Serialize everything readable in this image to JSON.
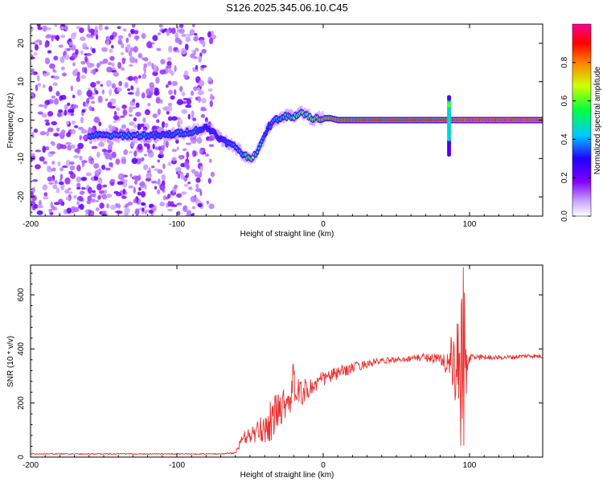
{
  "title": "S126.2025.345.06.10.C45",
  "chart_data": [
    {
      "type": "heatmap",
      "xlabel": "Height of straight line (km)",
      "ylabel": "Frequency (Hz)",
      "xlim": [
        -200,
        150
      ],
      "ylim": [
        -25,
        25
      ],
      "xticks": [
        -200,
        -100,
        0,
        100
      ],
      "xtick_labels": [
        "-200",
        "-100",
        "0",
        "100"
      ],
      "yticks": [
        -20,
        -10,
        0,
        10,
        20
      ],
      "ytick_labels": [
        "-20",
        "-10",
        "0",
        "10",
        "20"
      ],
      "noise_region_x": [
        -200,
        -75
      ],
      "ridge": {
        "x": [
          -150,
          -130,
          -110,
          -100,
          -90,
          -80,
          -75,
          -70,
          -65,
          -60,
          -57,
          -55,
          -52,
          -50,
          -47,
          -45,
          -42,
          -40,
          -38,
          -35,
          -33,
          -30,
          -25,
          -20,
          -15,
          -12,
          -10,
          -7,
          -5,
          0,
          5,
          10,
          20,
          30,
          40,
          50,
          60,
          70,
          80,
          85,
          87,
          88,
          90,
          95,
          100,
          120,
          150
        ],
        "freq": [
          -4,
          -4,
          -4,
          -3.5,
          -3,
          -2,
          -3,
          -5,
          -6,
          -7,
          -8,
          -9,
          -9.5,
          -10,
          -9,
          -8,
          -6,
          -4,
          -2,
          -1,
          0,
          0.5,
          1,
          1,
          2,
          1.5,
          1,
          0,
          0.5,
          0.5,
          0.5,
          0,
          0,
          0,
          0,
          0,
          0,
          0,
          0,
          0,
          0,
          0,
          0,
          0,
          0,
          0,
          0
        ],
        "amplitude": [
          0.4,
          0.45,
          0.35,
          0.4,
          0.4,
          0.3,
          0.25,
          0.3,
          0.35,
          0.4,
          0.45,
          0.5,
          0.6,
          0.75,
          0.6,
          0.5,
          0.4,
          0.35,
          0.3,
          0.4,
          0.45,
          0.5,
          0.55,
          0.6,
          0.65,
          0.6,
          0.6,
          0.7,
          0.75,
          0.75,
          0.8,
          0.85,
          0.85,
          0.9,
          0.9,
          0.9,
          0.9,
          0.9,
          0.9,
          0.9,
          0.85,
          0.9,
          0.95,
          0.95,
          1.0,
          1.0,
          1.0
        ]
      },
      "spike_feature": {
        "x": 86,
        "freq_range": [
          -9,
          6
        ]
      },
      "colorbar": {
        "label": "Normalized spectral amplitude",
        "range": [
          0,
          1
        ],
        "ticks": [
          0.0,
          0.2,
          0.4,
          0.6,
          0.8
        ],
        "tick_labels": [
          "0.0",
          "0.2",
          "0.4",
          "0.6",
          "0.8"
        ],
        "colormap": [
          "#ffffff",
          "#8800ff",
          "#2000ff",
          "#00c0ff",
          "#00ff40",
          "#ffff00",
          "#ff4000",
          "#ff00a0"
        ]
      }
    },
    {
      "type": "line",
      "xlabel": "Height of straight line (km)",
      "ylabel": "SNR (10 * v/v)",
      "xlim": [
        -200,
        150
      ],
      "ylim": [
        0,
        710
      ],
      "xticks": [
        -200,
        -100,
        0,
        100
      ],
      "xtick_labels": [
        "-200",
        "-100",
        "0",
        "100"
      ],
      "yticks": [
        0,
        200,
        400,
        600
      ],
      "ytick_labels": [
        "0",
        "200",
        "400",
        "600"
      ],
      "color": "#e83030",
      "envelope": {
        "x": [
          -200,
          -150,
          -100,
          -70,
          -60,
          -55,
          -50,
          -45,
          -40,
          -35,
          -30,
          -25,
          -20,
          -10,
          0,
          10,
          20,
          30,
          40,
          50,
          60,
          70,
          80,
          85,
          88,
          90,
          92,
          94,
          96,
          98,
          100,
          110,
          120,
          130,
          140,
          150
        ],
        "snr": [
          12,
          12,
          12,
          12,
          15,
          70,
          80,
          90,
          110,
          140,
          180,
          210,
          230,
          250,
          290,
          310,
          330,
          345,
          355,
          360,
          365,
          370,
          360,
          350,
          340,
          300,
          330,
          200,
          420,
          250,
          370,
          370,
          368,
          370,
          375,
          372
        ],
        "noise": [
          2,
          2,
          2,
          2,
          3,
          25,
          30,
          40,
          60,
          80,
          70,
          60,
          60,
          40,
          30,
          25,
          20,
          15,
          12,
          10,
          12,
          15,
          25,
          60,
          120,
          150,
          180,
          200,
          250,
          150,
          20,
          10,
          8,
          8,
          8,
          8
        ]
      }
    }
  ]
}
